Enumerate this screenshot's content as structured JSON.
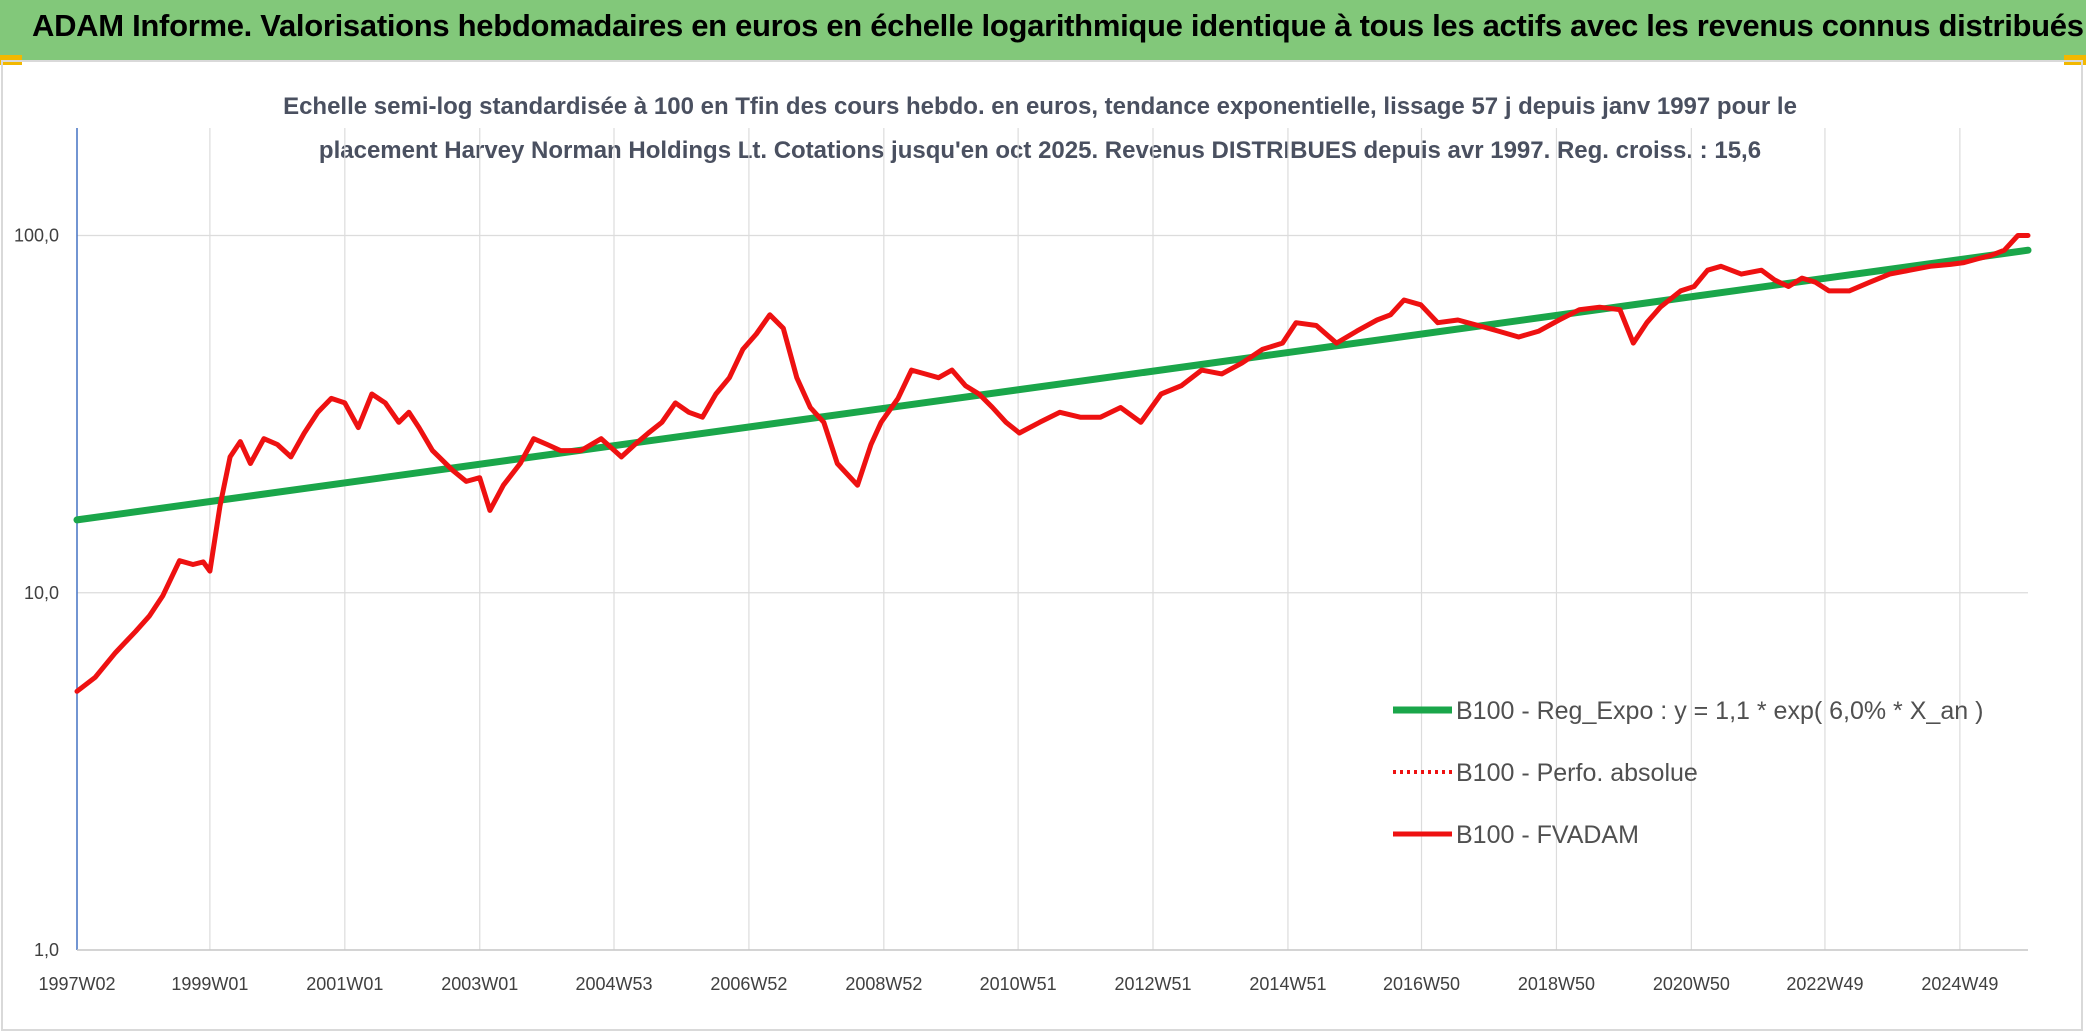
{
  "header": {
    "title": "ADAM Informe. Valorisations hebdomadaires en euros en échelle logarithmique identique à tous les actifs avec les revenus connus distribués"
  },
  "colors": {
    "banner": "#82c87a",
    "corner": "#f2b800",
    "trend": "#1aa64a",
    "price": "#ee1111",
    "axis": "#4472c4",
    "grid": "#dcdcdc"
  },
  "chart_data": {
    "type": "line",
    "subtitle_lines": [
      "Echelle semi-log standardisée à 100 en Tfin des cours hebdo. en euros, tendance exponentielle, lissage 57 j depuis janv 1997 pour le",
      "placement Harvey Norman Holdings Lt. Cotations jusqu'en oct 2025. Revenus DISTRIBUES depuis avr 1997. Reg. croiss. : 15,6"
    ],
    "y_scale": "log",
    "ylim": [
      1,
      200
    ],
    "y_ticks": [
      {
        "value": 100,
        "label": "100,0"
      },
      {
        "value": 10,
        "label": "10,0"
      },
      {
        "value": 1,
        "label": "1,0"
      }
    ],
    "xlim": [
      1997.03,
      2025.95
    ],
    "x_ticks": [
      {
        "value": 1997.03,
        "label": "1997W02"
      },
      {
        "value": 1999.0,
        "label": "1999W01"
      },
      {
        "value": 2001.0,
        "label": "2001W01"
      },
      {
        "value": 2003.0,
        "label": "2003W01"
      },
      {
        "value": 2004.99,
        "label": "2004W53"
      },
      {
        "value": 2006.99,
        "label": "2006W52"
      },
      {
        "value": 2008.99,
        "label": "2008W52"
      },
      {
        "value": 2010.98,
        "label": "2010W51"
      },
      {
        "value": 2012.98,
        "label": "2012W51"
      },
      {
        "value": 2014.98,
        "label": "2014W51"
      },
      {
        "value": 2016.96,
        "label": "2016W50"
      },
      {
        "value": 2018.96,
        "label": "2018W50"
      },
      {
        "value": 2020.96,
        "label": "2020W50"
      },
      {
        "value": 2022.94,
        "label": "2022W49"
      },
      {
        "value": 2024.94,
        "label": "2024W49"
      }
    ],
    "legend_position": "bottom-right",
    "series": [
      {
        "name": "B100 - Reg_Expo : y = 1,1 * exp( 6,0% *  X_an )",
        "style": "solid-thick",
        "color": "#1aa64a",
        "x": [
          1997.03,
          2025.95
        ],
        "y": [
          16,
          91
        ]
      },
      {
        "name": "B100 - Perfo. absolue",
        "style": "dotted",
        "color": "#ee1111",
        "x": [],
        "y": []
      },
      {
        "name": "B100 - FVADAM",
        "style": "solid",
        "color": "#ee1111",
        "x": [
          1997.03,
          1997.3,
          1997.6,
          1997.9,
          1998.1,
          1998.3,
          1998.55,
          1998.75,
          1998.9,
          1999.0,
          1999.15,
          1999.3,
          1999.45,
          1999.6,
          1999.8,
          2000.0,
          2000.2,
          2000.4,
          2000.6,
          2000.8,
          2001.0,
          2001.2,
          2001.4,
          2001.6,
          2001.8,
          2001.95,
          2002.1,
          2002.3,
          2002.6,
          2002.8,
          2003.0,
          2003.15,
          2003.35,
          2003.6,
          2003.8,
          2004.0,
          2004.2,
          2004.5,
          2004.8,
          2005.1,
          2005.3,
          2005.5,
          2005.7,
          2005.9,
          2006.1,
          2006.3,
          2006.5,
          2006.7,
          2006.9,
          2007.1,
          2007.3,
          2007.5,
          2007.7,
          2007.9,
          2008.1,
          2008.3,
          2008.6,
          2008.8,
          2008.95,
          2009.2,
          2009.4,
          2009.6,
          2009.8,
          2010.0,
          2010.2,
          2010.4,
          2010.6,
          2010.8,
          2011.0,
          2011.3,
          2011.6,
          2011.9,
          2012.2,
          2012.5,
          2012.8,
          2013.1,
          2013.4,
          2013.7,
          2014.0,
          2014.3,
          2014.6,
          2014.9,
          2015.1,
          2015.4,
          2015.7,
          2016.0,
          2016.3,
          2016.5,
          2016.7,
          2016.95,
          2017.2,
          2017.5,
          2017.8,
          2018.1,
          2018.4,
          2018.7,
          2019.0,
          2019.3,
          2019.6,
          2019.9,
          2020.1,
          2020.3,
          2020.5,
          2020.8,
          2021.0,
          2021.2,
          2021.4,
          2021.7,
          2022.0,
          2022.2,
          2022.4,
          2022.6,
          2022.8,
          2023.0,
          2023.3,
          2023.6,
          2023.9,
          2024.2,
          2024.5,
          2024.8,
          2025.0,
          2025.2,
          2025.4,
          2025.6,
          2025.8,
          2025.95
        ],
        "y": [
          5.3,
          5.8,
          6.8,
          7.8,
          8.6,
          9.8,
          12.3,
          12.0,
          12.2,
          11.5,
          17.5,
          24,
          26.5,
          23,
          27,
          26,
          24,
          28,
          32,
          35,
          34,
          29,
          36,
          34,
          30,
          32,
          29,
          25,
          22,
          20.5,
          21,
          17,
          20,
          23,
          27,
          26,
          25,
          25,
          27,
          24,
          26,
          28,
          30,
          34,
          32,
          31,
          36,
          40,
          48,
          53,
          60,
          55,
          40,
          33,
          30,
          23,
          20,
          26,
          30,
          35,
          42,
          41,
          40,
          42,
          38,
          36,
          33,
          30,
          28,
          30,
          32,
          31,
          31,
          33,
          30,
          36,
          38,
          42,
          41,
          44,
          48,
          50,
          57,
          56,
          50,
          54,
          58,
          60,
          66,
          64,
          57,
          58,
          56,
          54,
          52,
          54,
          58,
          62,
          63,
          62,
          50,
          57,
          63,
          70,
          72,
          80,
          82,
          78,
          80,
          75,
          72,
          76,
          74,
          70,
          70,
          74,
          78,
          80,
          82,
          83,
          84,
          86,
          88,
          91,
          100,
          100
        ]
      }
    ]
  }
}
